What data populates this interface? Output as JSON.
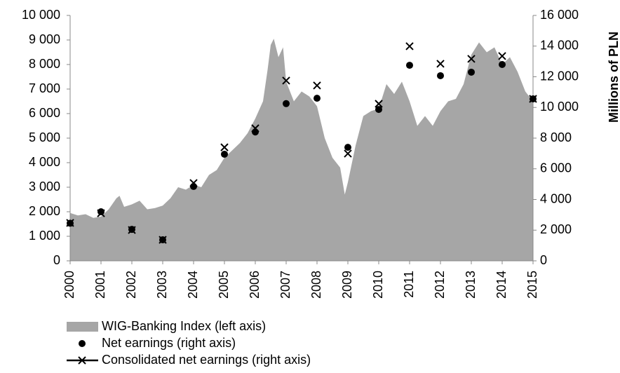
{
  "chart_data": {
    "type": "area",
    "y_right_label": "Millions of PLN",
    "xlim": [
      2000,
      2015
    ],
    "xticks": [
      2000,
      2001,
      2002,
      2003,
      2004,
      2005,
      2006,
      2007,
      2008,
      2009,
      2010,
      2011,
      2012,
      2013,
      2014,
      2015
    ],
    "ylim": [
      0,
      10000
    ],
    "yticks": [
      0,
      {
        "value": 1000,
        "label": "1 000"
      },
      {
        "value": 2000,
        "label": "2 000"
      },
      {
        "value": 3000,
        "label": "3 000"
      },
      {
        "value": 4000,
        "label": "4 000"
      },
      {
        "value": 5000,
        "label": "5 000"
      },
      {
        "value": 6000,
        "label": "6 000"
      },
      {
        "value": 7000,
        "label": "7 000"
      },
      {
        "value": 8000,
        "label": "8 000"
      },
      {
        "value": 9000,
        "label": "9 000"
      },
      {
        "value": 10000,
        "label": "10 000"
      }
    ],
    "y2lim": [
      0,
      16000
    ],
    "y2ticks": [
      0,
      {
        "value": 2000,
        "label": "2 000"
      },
      {
        "value": 4000,
        "label": "4 000"
      },
      {
        "value": 6000,
        "label": "6 000"
      },
      {
        "value": 8000,
        "label": "8 000"
      },
      {
        "value": 10000,
        "label": "10 000"
      },
      {
        "value": 12000,
        "label": "12 000"
      },
      {
        "value": 14000,
        "label": "14 000"
      },
      {
        "value": 16000,
        "label": "16 000"
      }
    ],
    "series": [
      {
        "name": "WIG-Banking Index (left axis)",
        "type": "area",
        "color": "#a6a6a6",
        "x": [
          2000.0,
          2000.25,
          2000.5,
          2000.75,
          2001.0,
          2001.25,
          2001.5,
          2001.6,
          2001.75,
          2002.0,
          2002.25,
          2002.5,
          2002.75,
          2003.0,
          2003.25,
          2003.5,
          2003.75,
          2004.0,
          2004.25,
          2004.5,
          2004.75,
          2005.0,
          2005.25,
          2005.5,
          2005.75,
          2006.0,
          2006.25,
          2006.4,
          2006.5,
          2006.6,
          2006.75,
          2006.9,
          2007.0,
          2007.25,
          2007.5,
          2007.75,
          2008.0,
          2008.25,
          2008.5,
          2008.75,
          2008.9,
          2009.0,
          2009.1,
          2009.25,
          2009.5,
          2009.75,
          2010.0,
          2010.25,
          2010.5,
          2010.75,
          2011.0,
          2011.25,
          2011.5,
          2011.75,
          2012.0,
          2012.25,
          2012.5,
          2012.75,
          2013.0,
          2013.25,
          2013.5,
          2013.75,
          2014.0,
          2014.25,
          2014.5,
          2014.75,
          2015.0
        ],
        "values": [
          1950,
          1850,
          1900,
          1750,
          1800,
          2100,
          2550,
          2650,
          2200,
          2300,
          2450,
          2100,
          2150,
          2250,
          2550,
          3000,
          2900,
          3100,
          3000,
          3500,
          3700,
          4200,
          4500,
          4800,
          5200,
          5800,
          6500,
          7800,
          8800,
          9050,
          8300,
          8700,
          7300,
          6500,
          6900,
          6700,
          6300,
          5000,
          4200,
          3800,
          2700,
          3200,
          3800,
          4700,
          5900,
          6100,
          6200,
          7200,
          6800,
          7300,
          6500,
          5500,
          5900,
          5500,
          6100,
          6500,
          6600,
          7200,
          8400,
          8900,
          8500,
          8700,
          8000,
          8300,
          7700,
          6900,
          6500
        ]
      },
      {
        "name": "Net earnings (right axis)",
        "type": "scatter",
        "marker": "circle",
        "axis": "y2",
        "color": "#000000",
        "x": [
          2000,
          2001,
          2002,
          2003,
          2004,
          2005,
          2006,
          2007,
          2008,
          2009,
          2010,
          2011,
          2012,
          2013,
          2014,
          2015
        ],
        "values": [
          2450,
          3200,
          2050,
          1370,
          4850,
          6950,
          8400,
          10250,
          10600,
          7400,
          9870,
          12750,
          12070,
          12300,
          12800,
          10560
        ]
      },
      {
        "name": "Consolidated net earnings (right axis)",
        "type": "scatter",
        "marker": "x",
        "axis": "y2",
        "color": "#000000",
        "x": [
          2000,
          2001,
          2002,
          2003,
          2004,
          2005,
          2006,
          2007,
          2008,
          2009,
          2010,
          2011,
          2012,
          2013,
          2014,
          2015
        ],
        "values": [
          2470,
          3100,
          2010,
          1370,
          5070,
          7400,
          8640,
          11750,
          11430,
          6990,
          10240,
          13990,
          12850,
          13170,
          13350,
          10560
        ]
      }
    ]
  }
}
